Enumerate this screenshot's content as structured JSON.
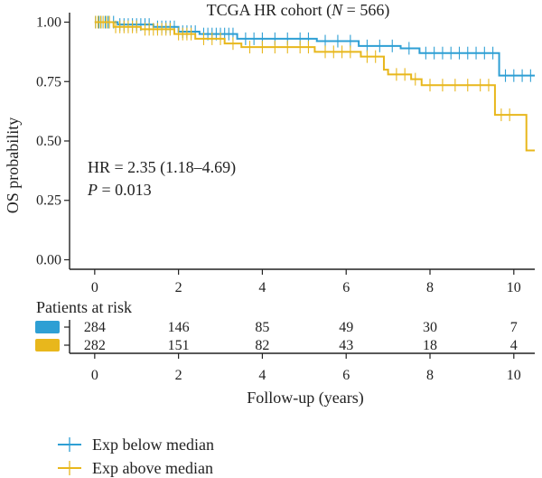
{
  "chart_data": {
    "type": "line",
    "subtype": "kaplan-meier",
    "title_prefix": "TCGA HR cohort (",
    "title_italic": "N",
    "title_suffix": " = 566)",
    "xlabel": "Follow-up (years)",
    "ylabel": "OS probability",
    "xlim": [
      -0.6,
      10.5
    ],
    "ylim": [
      -0.04,
      1.04
    ],
    "x_ticks": [
      0,
      2,
      4,
      6,
      8,
      10
    ],
    "y_ticks": [
      "0.00",
      "0.25",
      "0.50",
      "0.75",
      "1.00"
    ],
    "annotation": {
      "hr_text": "HR = 2.35 (1.18–4.69)",
      "p_italic": "P",
      "p_value_text": " = 0.013"
    },
    "risk_table": {
      "title": "Patients at risk",
      "times": [
        0,
        2,
        4,
        6,
        8,
        10
      ],
      "rows": [
        {
          "color": "#2e9fd4",
          "counts": [
            "284",
            "146",
            "85",
            "49",
            "30",
            "7"
          ]
        },
        {
          "color": "#e8b71c",
          "counts": [
            "282",
            "151",
            "82",
            "43",
            "18",
            "4"
          ]
        }
      ]
    },
    "legend_position": "bottom-left",
    "series": [
      {
        "name": "Exp below median",
        "color": "#2e9fd4",
        "steps": [
          [
            0,
            1.0
          ],
          [
            0.55,
            0.99
          ],
          [
            1.4,
            0.98
          ],
          [
            2.0,
            0.96
          ],
          [
            2.5,
            0.95
          ],
          [
            3.4,
            0.93
          ],
          [
            5.3,
            0.92
          ],
          [
            6.3,
            0.9
          ],
          [
            7.3,
            0.89
          ],
          [
            7.75,
            0.87
          ],
          [
            9.0,
            0.87
          ],
          [
            9.65,
            0.775
          ],
          [
            10.5,
            0.775
          ]
        ],
        "censors": [
          [
            0.02,
            1.0
          ],
          [
            0.1,
            1.0
          ],
          [
            0.15,
            1.0
          ],
          [
            0.25,
            1.0
          ],
          [
            0.32,
            1.0
          ],
          [
            0.45,
            1.0
          ],
          [
            0.6,
            0.99
          ],
          [
            0.7,
            0.99
          ],
          [
            0.8,
            0.99
          ],
          [
            0.9,
            0.99
          ],
          [
            1.0,
            0.99
          ],
          [
            1.1,
            0.99
          ],
          [
            1.2,
            0.99
          ],
          [
            1.3,
            0.99
          ],
          [
            1.5,
            0.98
          ],
          [
            1.6,
            0.98
          ],
          [
            1.7,
            0.98
          ],
          [
            1.8,
            0.98
          ],
          [
            1.9,
            0.98
          ],
          [
            2.1,
            0.96
          ],
          [
            2.2,
            0.96
          ],
          [
            2.3,
            0.96
          ],
          [
            2.4,
            0.96
          ],
          [
            2.6,
            0.95
          ],
          [
            2.7,
            0.95
          ],
          [
            2.8,
            0.95
          ],
          [
            2.9,
            0.95
          ],
          [
            3.0,
            0.95
          ],
          [
            3.1,
            0.95
          ],
          [
            3.2,
            0.95
          ],
          [
            3.3,
            0.95
          ],
          [
            3.6,
            0.93
          ],
          [
            3.8,
            0.93
          ],
          [
            4.0,
            0.93
          ],
          [
            4.3,
            0.93
          ],
          [
            4.6,
            0.93
          ],
          [
            4.9,
            0.93
          ],
          [
            5.1,
            0.93
          ],
          [
            5.5,
            0.92
          ],
          [
            5.8,
            0.92
          ],
          [
            6.1,
            0.92
          ],
          [
            6.5,
            0.9
          ],
          [
            6.8,
            0.9
          ],
          [
            7.1,
            0.9
          ],
          [
            7.5,
            0.89
          ],
          [
            7.9,
            0.87
          ],
          [
            8.1,
            0.87
          ],
          [
            8.3,
            0.87
          ],
          [
            8.5,
            0.87
          ],
          [
            8.7,
            0.87
          ],
          [
            8.9,
            0.87
          ],
          [
            9.1,
            0.87
          ],
          [
            9.3,
            0.87
          ],
          [
            9.5,
            0.87
          ],
          [
            9.8,
            0.775
          ],
          [
            10.0,
            0.775
          ],
          [
            10.2,
            0.775
          ],
          [
            10.4,
            0.775
          ]
        ]
      },
      {
        "name": "Exp above median",
        "color": "#e8b71c",
        "steps": [
          [
            0,
            1.0
          ],
          [
            0.45,
            0.98
          ],
          [
            1.1,
            0.97
          ],
          [
            1.9,
            0.95
          ],
          [
            2.4,
            0.93
          ],
          [
            3.1,
            0.91
          ],
          [
            3.5,
            0.895
          ],
          [
            5.25,
            0.875
          ],
          [
            6.35,
            0.855
          ],
          [
            6.9,
            0.8
          ],
          [
            7.0,
            0.78
          ],
          [
            7.55,
            0.76
          ],
          [
            7.8,
            0.735
          ],
          [
            9.55,
            0.61
          ],
          [
            10.3,
            0.46
          ],
          [
            10.5,
            0.46
          ]
        ],
        "censors": [
          [
            0.02,
            1.0
          ],
          [
            0.08,
            1.0
          ],
          [
            0.14,
            1.0
          ],
          [
            0.2,
            1.0
          ],
          [
            0.28,
            1.0
          ],
          [
            0.35,
            1.0
          ],
          [
            0.5,
            0.98
          ],
          [
            0.6,
            0.98
          ],
          [
            0.7,
            0.98
          ],
          [
            0.8,
            0.98
          ],
          [
            0.9,
            0.98
          ],
          [
            1.0,
            0.98
          ],
          [
            1.2,
            0.97
          ],
          [
            1.3,
            0.97
          ],
          [
            1.4,
            0.97
          ],
          [
            1.5,
            0.97
          ],
          [
            1.6,
            0.97
          ],
          [
            1.7,
            0.97
          ],
          [
            1.8,
            0.97
          ],
          [
            2.0,
            0.95
          ],
          [
            2.1,
            0.95
          ],
          [
            2.2,
            0.95
          ],
          [
            2.3,
            0.95
          ],
          [
            2.6,
            0.93
          ],
          [
            2.8,
            0.93
          ],
          [
            3.0,
            0.93
          ],
          [
            3.3,
            0.91
          ],
          [
            3.7,
            0.895
          ],
          [
            4.0,
            0.895
          ],
          [
            4.3,
            0.895
          ],
          [
            4.6,
            0.895
          ],
          [
            4.9,
            0.895
          ],
          [
            5.1,
            0.895
          ],
          [
            5.5,
            0.875
          ],
          [
            5.7,
            0.875
          ],
          [
            5.9,
            0.875
          ],
          [
            6.1,
            0.875
          ],
          [
            6.5,
            0.855
          ],
          [
            6.7,
            0.855
          ],
          [
            7.2,
            0.78
          ],
          [
            7.4,
            0.78
          ],
          [
            7.65,
            0.76
          ],
          [
            8.0,
            0.735
          ],
          [
            8.3,
            0.735
          ],
          [
            8.6,
            0.735
          ],
          [
            8.9,
            0.735
          ],
          [
            9.2,
            0.735
          ],
          [
            9.4,
            0.735
          ],
          [
            9.7,
            0.61
          ],
          [
            9.9,
            0.61
          ]
        ]
      }
    ]
  }
}
